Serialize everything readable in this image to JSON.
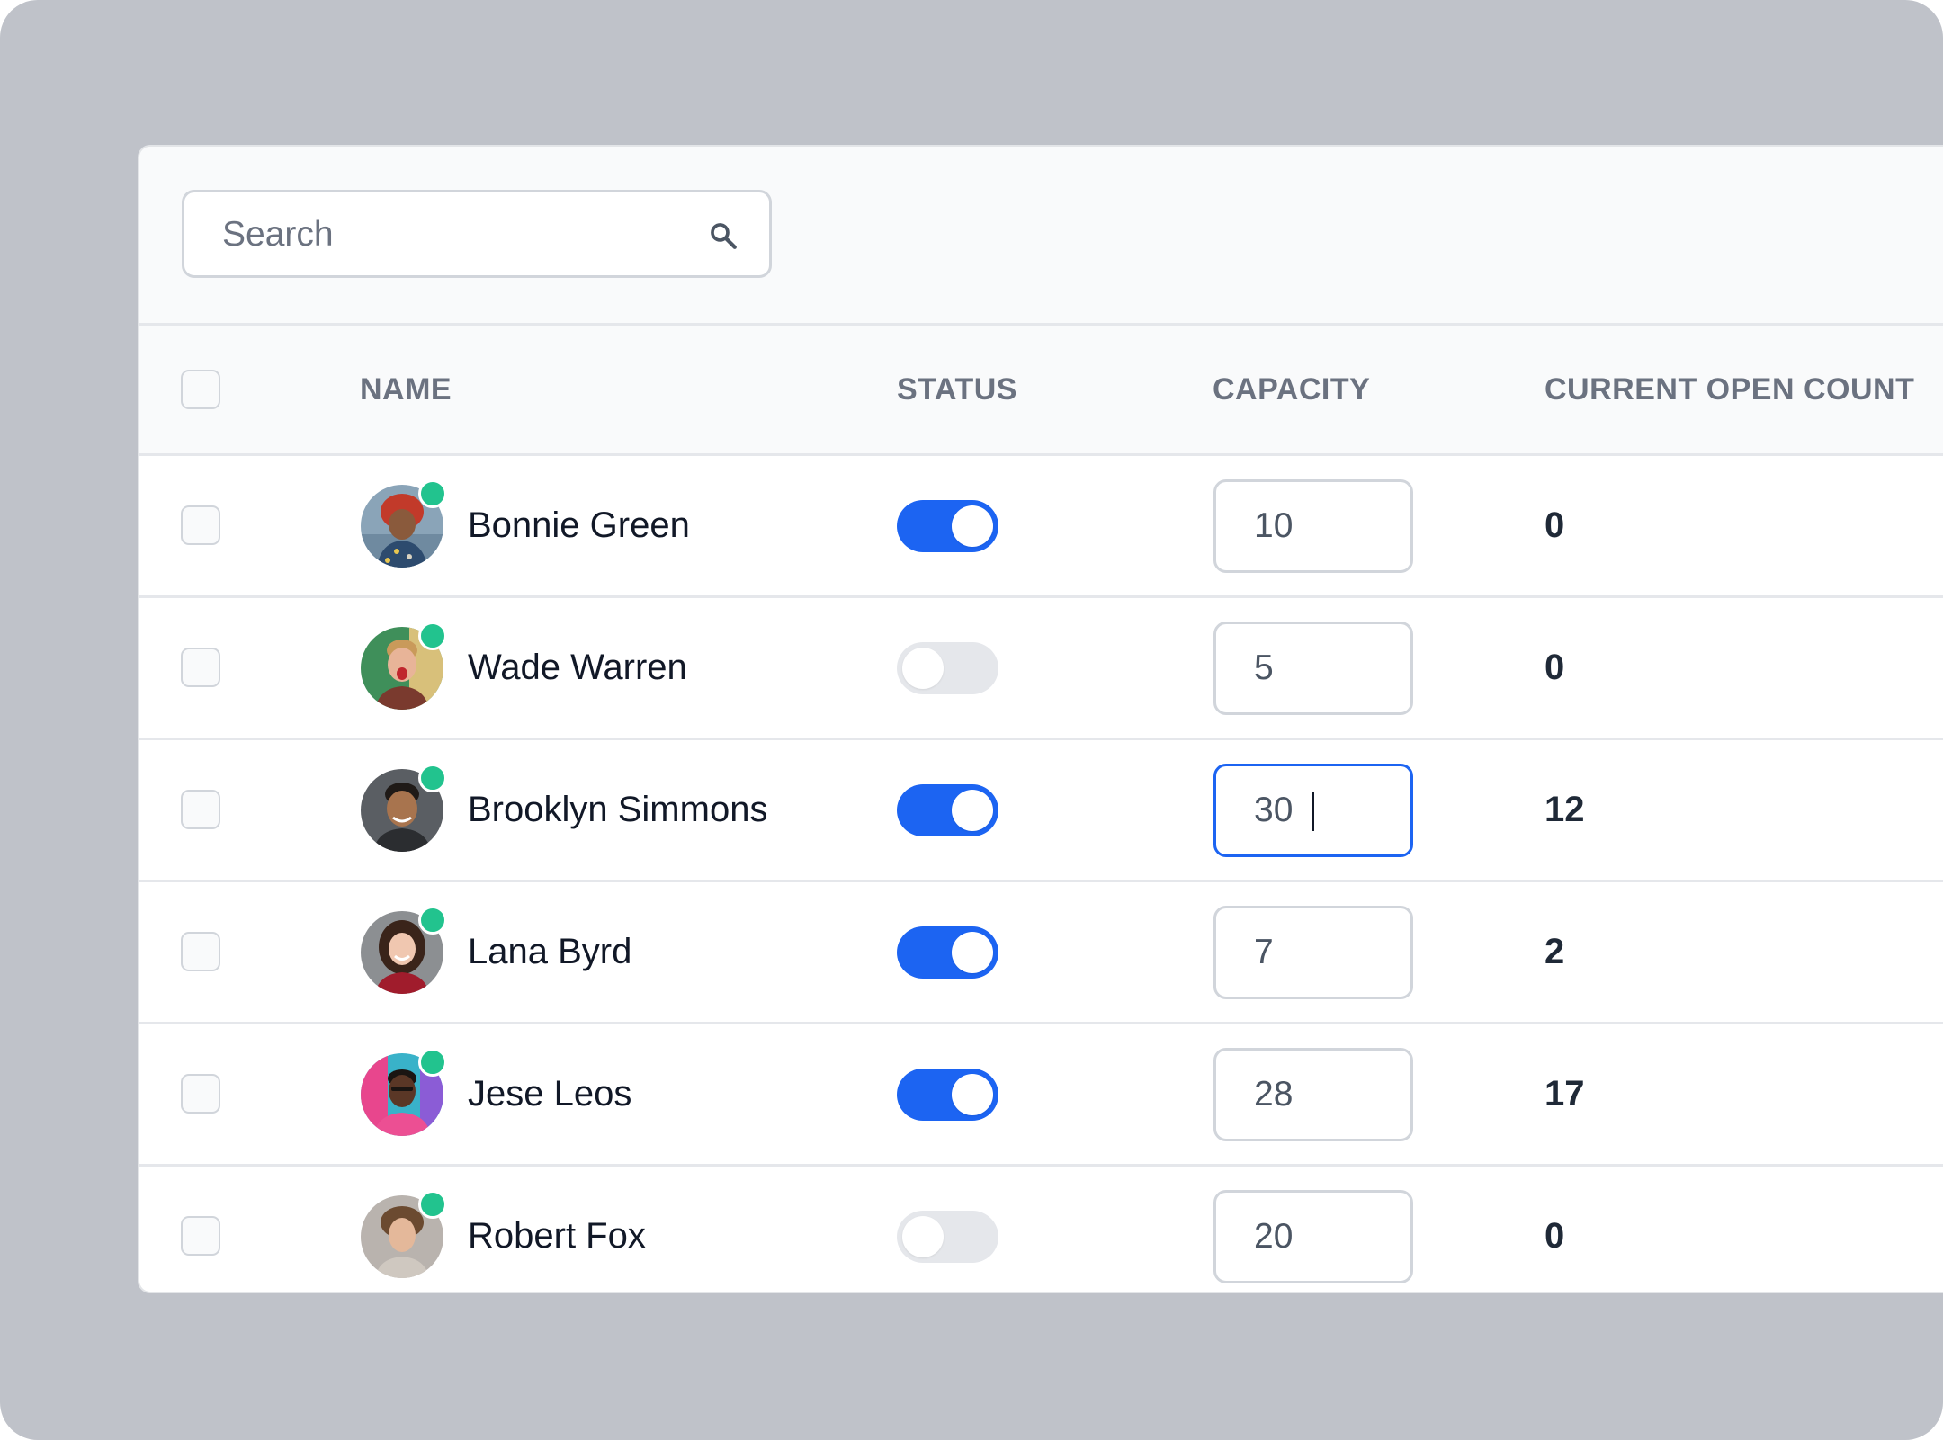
{
  "search": {
    "placeholder": "Search",
    "value": ""
  },
  "table": {
    "headers": {
      "name": "NAME",
      "status": "STATUS",
      "capacity": "CAPACITY",
      "open_count": "CURRENT OPEN COUNT"
    },
    "rows": [
      {
        "name": "Bonnie Green",
        "online": true,
        "status_on": true,
        "capacity": "10",
        "open_count": "0",
        "avatar": "avatar-bonnie"
      },
      {
        "name": "Wade Warren",
        "online": true,
        "status_on": false,
        "capacity": "5",
        "open_count": "0",
        "avatar": "avatar-wade"
      },
      {
        "name": "Brooklyn Simmons",
        "online": true,
        "status_on": true,
        "capacity": "30",
        "open_count": "12",
        "avatar": "avatar-brooklyn",
        "focused": true
      },
      {
        "name": "Lana Byrd",
        "online": true,
        "status_on": true,
        "capacity": "7",
        "open_count": "2",
        "avatar": "avatar-lana"
      },
      {
        "name": "Jese Leos",
        "online": true,
        "status_on": true,
        "capacity": "28",
        "open_count": "17",
        "avatar": "avatar-jese"
      },
      {
        "name": "Robert Fox",
        "online": true,
        "status_on": false,
        "capacity": "20",
        "open_count": "0",
        "avatar": "avatar-robert"
      }
    ]
  },
  "colors": {
    "backdrop": "#bfc2c9",
    "toggle_on": "#1c64f2",
    "toggle_off": "#e5e7eb",
    "online": "#22c38e",
    "focus_border": "#1c64f2"
  },
  "icons": {
    "search": "search-icon"
  }
}
